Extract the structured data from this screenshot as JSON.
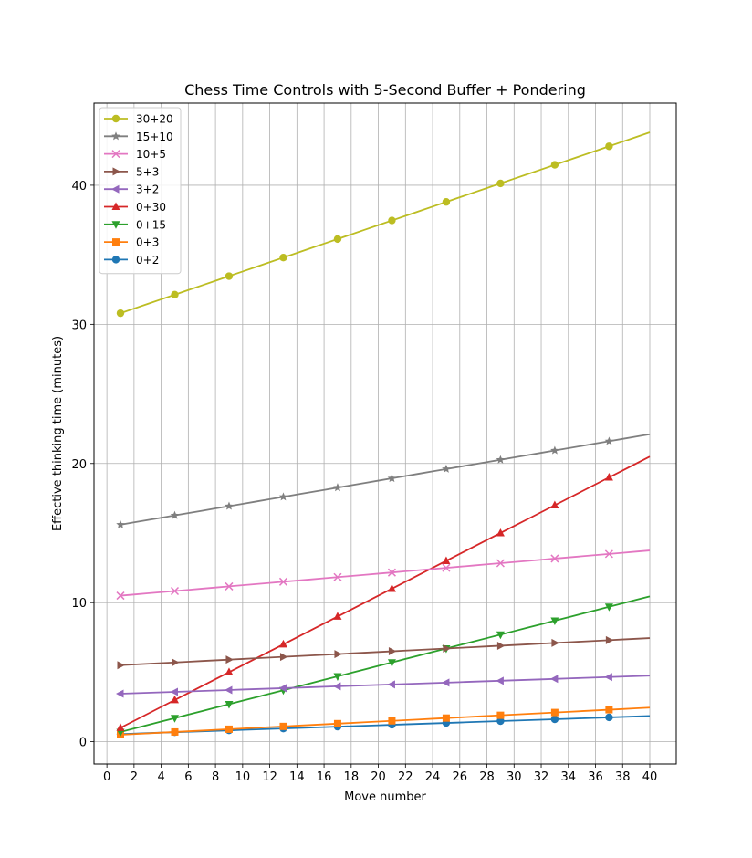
{
  "chart_data": {
    "type": "line",
    "title": "Chess Time Controls with 5-Second Buffer + Pondering",
    "xlabel": "Move number",
    "ylabel": "Effective thinking time (minutes)",
    "xlim": [
      -0.95,
      41.95
    ],
    "ylim": [
      -1.6,
      45.9
    ],
    "xticks": [
      0,
      2,
      4,
      6,
      8,
      10,
      12,
      14,
      16,
      18,
      20,
      22,
      24,
      26,
      28,
      30,
      32,
      34,
      36,
      38,
      40
    ],
    "yticks": [
      0,
      10,
      20,
      30,
      40
    ],
    "grid": true,
    "legend_position": "top-left",
    "marker_x": [
      1,
      5,
      9,
      13,
      17,
      21,
      25,
      29,
      33,
      37
    ],
    "series": [
      {
        "name": "30+20",
        "color": "#bcbd22",
        "marker": "circle",
        "start": 30.8,
        "slope": 0.3333
      },
      {
        "name": "15+10",
        "color": "#7f7f7f",
        "marker": "star",
        "start": 15.6,
        "slope": 0.1667
      },
      {
        "name": "10+5",
        "color": "#e377c2",
        "marker": "x",
        "start": 10.5,
        "slope": 0.0833
      },
      {
        "name": "5+3",
        "color": "#8c564b",
        "marker": "triangle-right",
        "start": 5.5,
        "slope": 0.05
      },
      {
        "name": "3+2",
        "color": "#9467bd",
        "marker": "triangle-left",
        "start": 3.45,
        "slope": 0.0333
      },
      {
        "name": "0+30",
        "color": "#d62728",
        "marker": "triangle-up",
        "start": 1.0,
        "slope": 0.5
      },
      {
        "name": "0+15",
        "color": "#2ca02c",
        "marker": "triangle-down",
        "start": 0.7,
        "slope": 0.25
      },
      {
        "name": "0+3",
        "color": "#ff7f0e",
        "marker": "square",
        "start": 0.5,
        "slope": 0.05
      },
      {
        "name": "0+2",
        "color": "#1f77b4",
        "marker": "circle",
        "start": 0.55,
        "slope": 0.0333
      }
    ]
  }
}
